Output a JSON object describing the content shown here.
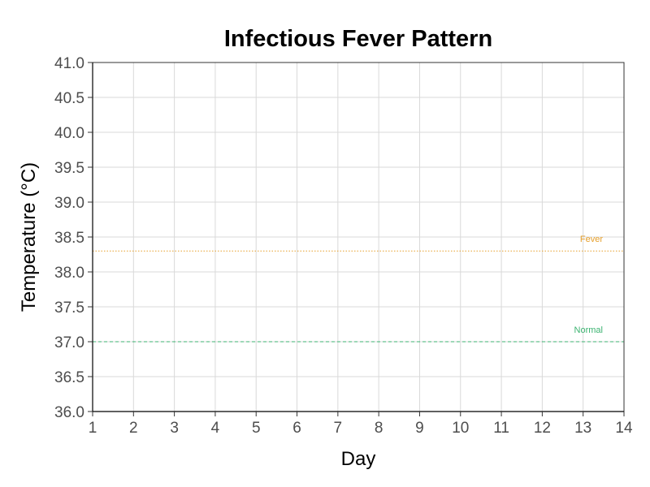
{
  "chart_data": {
    "type": "line",
    "title": "Infectious Fever Pattern",
    "xlabel": "Day",
    "ylabel": "Temperature (°C)",
    "xlim": [
      1,
      14
    ],
    "ylim": [
      36.0,
      41.0
    ],
    "x_ticks": [
      1,
      2,
      3,
      4,
      5,
      6,
      7,
      8,
      9,
      10,
      11,
      12,
      13,
      14
    ],
    "y_ticks": [
      "36.0",
      "36.5",
      "37.0",
      "37.5",
      "38.0",
      "38.5",
      "39.0",
      "39.5",
      "40.0",
      "40.5",
      "41.0"
    ],
    "grid": true,
    "series": [],
    "reference_lines": [
      {
        "label": "Fever",
        "y": 38.3,
        "color": "#e69f2b",
        "style": "dotted"
      },
      {
        "label": "Normal",
        "y": 37.0,
        "color": "#3cb371",
        "style": "dashed"
      }
    ]
  }
}
